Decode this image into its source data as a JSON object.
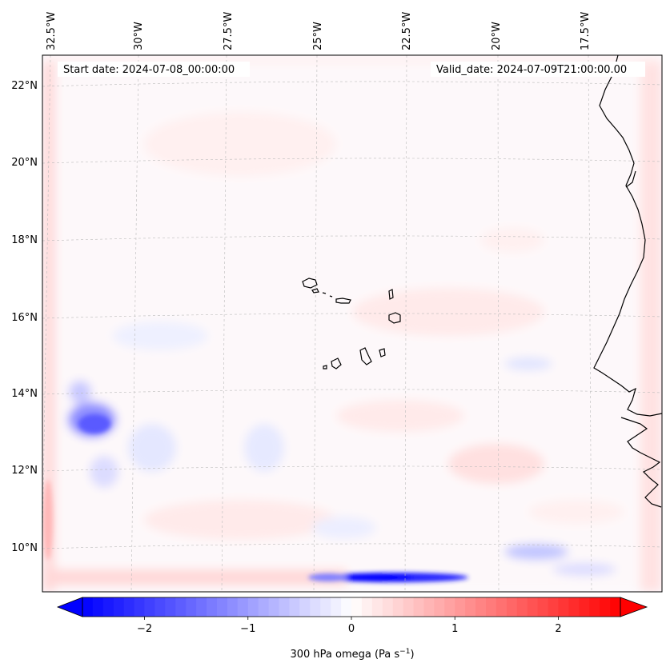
{
  "header": {
    "start_date": "Start date: 2024-07-08_00:00:00",
    "valid_date": "Valid_date: 2024-07-09T21:00:00.00"
  },
  "map": {
    "projection": "lambert-conformal",
    "field": "300 hPa omega",
    "longitude_labels": [
      "32.5°W",
      "30°W",
      "27.5°W",
      "25°W",
      "22.5°W",
      "20°W",
      "17.5°W"
    ],
    "latitude_labels": [
      "22°N",
      "20°N",
      "18°N",
      "16°N",
      "14°N",
      "12°N",
      "10°N"
    ],
    "features": [
      "Cape Verde islands",
      "West African coastline (Mauritania, Senegal, Gambia, Guinea-Bissau)"
    ]
  },
  "colorbar": {
    "ticks": [
      "−2",
      "−1",
      "0",
      "1",
      "2"
    ],
    "tick_values": [
      -2,
      -1,
      0,
      1,
      2
    ],
    "range": [
      -2.6,
      2.6
    ],
    "label_main": "300 hPa omega (Pa s",
    "label_sup": "−1",
    "label_end": ")",
    "colors": {
      "negative": "#0000ff",
      "zero": "#ffffff",
      "positive": "#ff0000"
    },
    "extend": "both"
  }
}
